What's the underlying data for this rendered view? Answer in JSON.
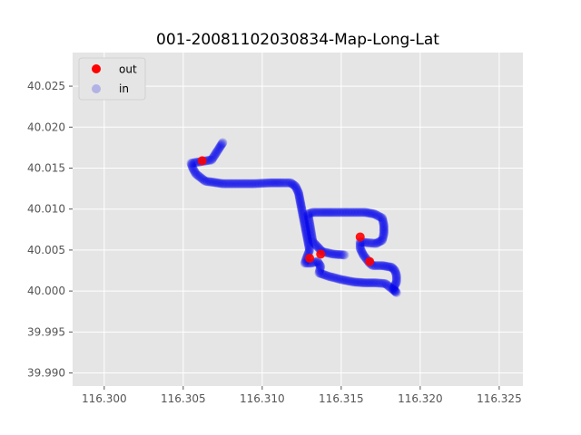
{
  "chart_data": {
    "type": "scatter",
    "title": "001-20081102030834-Map-Long-Lat",
    "xlabel": "",
    "ylabel": "",
    "xlim": [
      116.298,
      116.3265
    ],
    "ylim": [
      39.9884,
      40.0291
    ],
    "xticks": [
      116.3,
      116.305,
      116.31,
      116.315,
      116.32,
      116.325
    ],
    "xtick_labels": [
      "116.300",
      "116.305",
      "116.310",
      "116.315",
      "116.320",
      "116.325"
    ],
    "yticks": [
      39.99,
      39.995,
      40.0,
      40.005,
      40.01,
      40.015,
      40.02,
      40.025
    ],
    "ytick_labels": [
      "39.990",
      "39.995",
      "40.000",
      "40.005",
      "40.010",
      "40.015",
      "40.020",
      "40.025"
    ],
    "grid": true,
    "legend_position": "top-left",
    "background_color": "#e5e5e5",
    "series": [
      {
        "name": "out",
        "color": "#ff0000",
        "points": [
          [
            116.3062,
            40.0159
          ],
          [
            116.3162,
            40.0066
          ],
          [
            116.3137,
            40.0045
          ],
          [
            116.3168,
            40.0036
          ],
          [
            116.313,
            40.004
          ]
        ]
      },
      {
        "name": "in",
        "color": "#0000ee",
        "path": [
          [
            116.3075,
            40.0181
          ],
          [
            116.3073,
            40.0175
          ],
          [
            116.3068,
            40.016
          ],
          [
            116.3055,
            40.0156
          ],
          [
            116.3056,
            40.015
          ],
          [
            116.3058,
            40.0143
          ],
          [
            116.3062,
            40.0137
          ],
          [
            116.3064,
            40.0134
          ],
          [
            116.3068,
            40.0133
          ],
          [
            116.3075,
            40.0131
          ],
          [
            116.3085,
            40.0131
          ],
          [
            116.3095,
            40.0131
          ],
          [
            116.3105,
            40.0132
          ],
          [
            116.3112,
            40.0132
          ],
          [
            116.3118,
            40.0132
          ],
          [
            116.3121,
            40.0128
          ],
          [
            116.3123,
            40.012
          ],
          [
            116.3124,
            40.011
          ],
          [
            116.3125,
            40.01
          ],
          [
            116.3126,
            40.009
          ],
          [
            116.3127,
            40.008
          ],
          [
            116.3128,
            40.007
          ],
          [
            116.3129,
            40.006
          ],
          [
            116.313,
            40.005
          ],
          [
            116.3128,
            40.004
          ],
          [
            116.3127,
            40.0034
          ],
          [
            116.3131,
            40.0034
          ],
          [
            116.3135,
            40.0036
          ],
          [
            116.3137,
            40.003
          ],
          [
            116.3136,
            40.0022
          ],
          [
            116.3142,
            40.0018
          ],
          [
            116.315,
            40.0014
          ],
          [
            116.3158,
            40.0011
          ],
          [
            116.3165,
            40.001
          ],
          [
            116.3172,
            40.001
          ],
          [
            116.3178,
            40.0009
          ],
          [
            116.3182,
            40.0003
          ],
          [
            116.3185,
            39.9998
          ],
          [
            116.3183,
            40.0003
          ],
          [
            116.3185,
            40.0011
          ],
          [
            116.3185,
            40.0019
          ],
          [
            116.3184,
            40.0025
          ],
          [
            116.3182,
            40.0029
          ],
          [
            116.3176,
            40.0031
          ],
          [
            116.317,
            40.0031
          ],
          [
            116.3168,
            40.0034
          ],
          [
            116.3166,
            40.0039
          ],
          [
            116.3164,
            40.0044
          ],
          [
            116.3162,
            40.0052
          ],
          [
            116.3162,
            40.006
          ],
          [
            116.3166,
            40.0059
          ],
          [
            116.3172,
            40.0058
          ],
          [
            116.3176,
            40.0062
          ],
          [
            116.3177,
            40.007
          ],
          [
            116.3177,
            40.008
          ],
          [
            116.3176,
            40.0089
          ],
          [
            116.3171,
            40.0094
          ],
          [
            116.3165,
            40.0096
          ],
          [
            116.3155,
            40.0096
          ],
          [
            116.3145,
            40.0096
          ],
          [
            116.3137,
            40.0096
          ],
          [
            116.3132,
            40.0096
          ],
          [
            116.3129,
            40.0094
          ],
          [
            116.3132,
            40.006
          ],
          [
            116.3138,
            40.0048
          ],
          [
            116.3145,
            40.0045
          ],
          [
            116.3152,
            40.0044
          ]
        ]
      }
    ]
  }
}
